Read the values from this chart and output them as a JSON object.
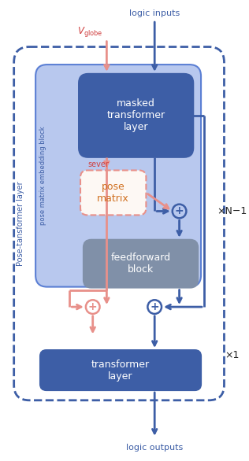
{
  "fig_width": 3.16,
  "fig_height": 5.86,
  "dpi": 100,
  "bg_color": "#ffffff",
  "colors": {
    "blue_dark": "#3d5ea6",
    "blue_mid": "#5b7fd4",
    "blue_light": "#b8c8ee",
    "gray_block": "#8090a8",
    "red_arrow": "#e8908a",
    "red_text": "#d04040",
    "orange_text": "#d07020",
    "dashed_border": "#3d5ea6",
    "white": "#ffffff",
    "black": "#222222",
    "pose_box_fill": "#fdf8f4"
  },
  "labels": {
    "logic_inputs": "logic inputs",
    "logic_outputs": "logic outputs",
    "masked_transformer": "masked\ntransformer\nlayer",
    "pose_matrix": "pose\nmatrix",
    "feedforward": "feedforward\nblock",
    "transformer_layer": "transformer\nlayer",
    "sever": "sever",
    "pose_matrix_embedding": "pose matrix embedding block",
    "pose_transformer": "Pose-tansformer layer",
    "xN1": "×N−1",
    "x1": "×1"
  }
}
